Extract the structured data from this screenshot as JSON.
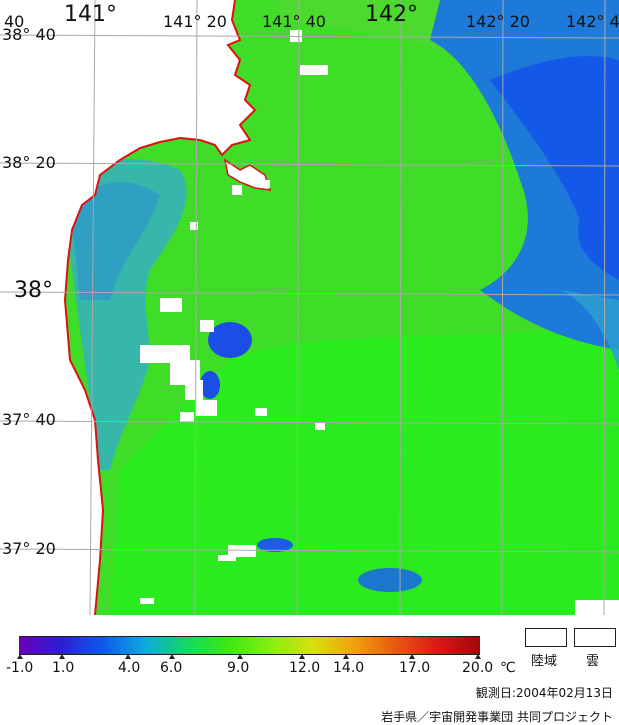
{
  "map": {
    "longitude_labels": [
      {
        "text": "40",
        "big": false
      },
      {
        "text": "141°",
        "big": true
      },
      {
        "text": "141° 20",
        "big": false
      },
      {
        "text": "141° 40",
        "big": false
      },
      {
        "text": "142°",
        "big": true
      },
      {
        "text": "142° 20",
        "big": false
      },
      {
        "text": "142° 4",
        "big": false
      }
    ],
    "latitude_labels": [
      {
        "text": "38° 40",
        "big": false
      },
      {
        "text": "38° 20",
        "big": false
      },
      {
        "text": "38°",
        "big": true
      },
      {
        "text": "37° 40",
        "big": false
      },
      {
        "text": "37° 20",
        "big": false
      }
    ],
    "colors": {
      "land": "#ffffff",
      "coastline": "#e01010",
      "graticule": "#a8a8a8",
      "sea_green": "#3fdc28",
      "sea_bright": "#22ee18",
      "sea_blue": "#1560e0",
      "sea_cyan": "#2fa8c8"
    }
  },
  "colorbar": {
    "ticks": [
      "-1.0",
      "1.0",
      "4.0",
      "6.0",
      "9.0",
      "12.0",
      "14.0",
      "17.0",
      "20.0"
    ],
    "unit": "℃",
    "colors": [
      "#6a00b8",
      "#2d1fd0",
      "#0c5be8",
      "#10a8e0",
      "#14d860",
      "#3ce814",
      "#86ee14",
      "#d8e010",
      "#f0a010",
      "#e85810",
      "#d81818",
      "#a00808"
    ]
  },
  "legend": {
    "land_label": "陸域",
    "cloud_label": "雲"
  },
  "footer": {
    "observation_date": "観測日:2004年02月13日",
    "credit": "岩手県／宇宙開発事業団  共同プロジェクト"
  }
}
